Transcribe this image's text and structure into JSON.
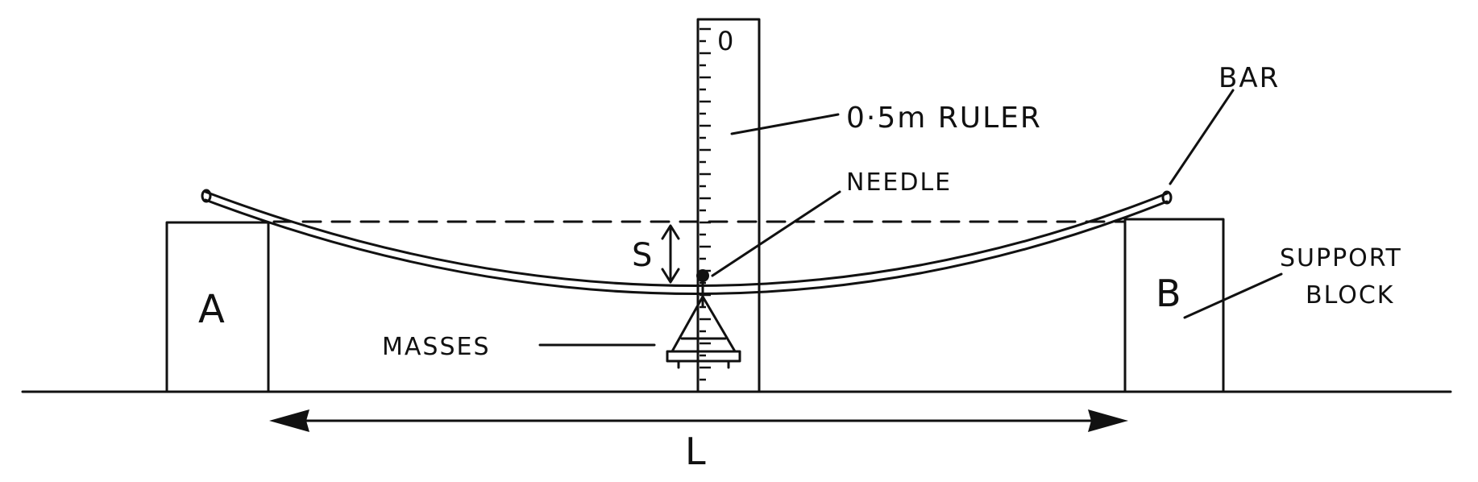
{
  "labels": {
    "ruler": "0·5m RULER",
    "ruler_zero": "0",
    "bar": "BAR",
    "needle": "NEEDLE",
    "support_block_line1": "SUPPORT",
    "support_block_line2": "BLOCK",
    "block_a": "A",
    "block_b": "B",
    "sag": "S",
    "masses": "MASSES",
    "length": "L"
  },
  "colors": {
    "ink": "#111111",
    "background": "#ffffff"
  }
}
